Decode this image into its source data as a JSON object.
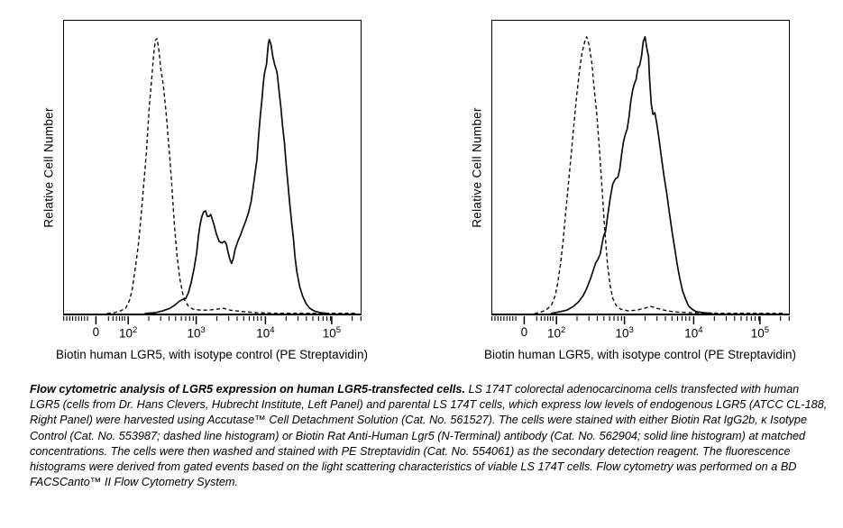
{
  "figure": {
    "background": "#ffffff",
    "ink": "#000000"
  },
  "caption": {
    "lead": "Flow cytometric analysis of LGR5 expression on human LGR5-transfected cells.",
    "body": " LS 174T colorectal adenocarcinoma cells transfected with human LGR5 (cells from Dr. Hans Clevers, Hubrecht Institute, Left Panel) and parental LS 174T cells, which express low levels of endogenous LGR5 (ATCC CL-188, Right Panel) were harvested using Accutase™ Cell Detachment Solution (Cat. No. 561527). The cells were stained with either Biotin Rat IgG2b, κ Isotype Control (Cat. No. 553987; dashed line histogram) or Biotin Rat Anti-Human Lgr5 (N-Terminal) antibody (Cat. No. 562904; solid line histogram) at matched concentrations. The cells were then washed and stained with PE Streptavidin (Cat. No. 554061) as the secondary detection reagent. The fluorescence histograms were derived from gated events based on the light scattering characteristics of viable LS 174T cells. Flow cytometry was performed on a BD FACSCanto™ II Flow Cytometry System."
  },
  "chart_data": {
    "type": "line",
    "subtype": "flow-cytometry-histogram-overlay",
    "x_scale": "logicle",
    "grid": false,
    "legend": "none",
    "x_axis": {
      "label": "Biotin human LGR5, with isotype control (PE Streptavidin)",
      "ticks": [
        {
          "base": "0",
          "exp": "",
          "pos": 0.11
        },
        {
          "base": "10",
          "exp": "2",
          "pos": 0.218
        },
        {
          "base": "10",
          "exp": "3",
          "pos": 0.446
        },
        {
          "base": "10",
          "exp": "4",
          "pos": 0.678
        },
        {
          "base": "10",
          "exp": "5",
          "pos": 0.9
        }
      ],
      "minor_ticks": [
        0.002,
        0.012,
        0.022,
        0.032,
        0.042,
        0.052,
        0.062,
        0.072,
        0.082,
        0.152,
        0.167,
        0.179,
        0.189,
        0.198,
        0.206,
        0.287,
        0.327,
        0.355,
        0.377,
        0.396,
        0.411,
        0.424,
        0.436,
        0.515,
        0.555,
        0.583,
        0.605,
        0.624,
        0.639,
        0.652,
        0.664,
        0.747,
        0.787,
        0.815,
        0.837,
        0.856,
        0.871,
        0.884,
        0.896,
        0.969,
        0.998
      ]
    },
    "y_axis": {
      "label": "Relative Cell Number",
      "ticks": "none"
    },
    "panels": [
      {
        "name": "Left Panel",
        "series": [
          {
            "name": "Isotype Control (dashed line histogram)",
            "style": "dashed",
            "mode_x": "2.5e2",
            "points": [
              [
                0.145,
                0
              ],
              [
                0.169,
                0.003
              ],
              [
                0.19,
                0.009
              ],
              [
                0.208,
                0.018
              ],
              [
                0.221,
                0.046
              ],
              [
                0.23,
                0.082
              ],
              [
                0.242,
                0.168
              ],
              [
                0.251,
                0.238
              ],
              [
                0.26,
                0.335
              ],
              [
                0.269,
                0.442
              ],
              [
                0.278,
                0.555
              ],
              [
                0.287,
                0.701
              ],
              [
                0.296,
                0.808
              ],
              [
                0.302,
                0.884
              ],
              [
                0.308,
                0.933
              ],
              [
                0.314,
                0.939
              ],
              [
                0.32,
                0.899
              ],
              [
                0.326,
                0.838
              ],
              [
                0.335,
                0.777
              ],
              [
                0.344,
                0.686
              ],
              [
                0.35,
                0.616
              ],
              [
                0.357,
                0.527
              ],
              [
                0.363,
                0.442
              ],
              [
                0.372,
                0.305
              ],
              [
                0.381,
                0.198
              ],
              [
                0.39,
                0.122
              ],
              [
                0.399,
                0.073
              ],
              [
                0.408,
                0.043
              ],
              [
                0.42,
                0.024
              ],
              [
                0.435,
                0.015
              ],
              [
                0.459,
                0.012
              ],
              [
                0.489,
                0.012
              ],
              [
                0.514,
                0.015
              ],
              [
                0.538,
                0.018
              ],
              [
                0.559,
                0.012
              ],
              [
                0.58,
                0.009
              ],
              [
                0.61,
                0.006
              ],
              [
                0.65,
                0.003
              ],
              [
                0.725,
                0.001
              ],
              [
                0.982,
                0.001
              ]
            ]
          },
          {
            "name": "Anti-Human Lgr5 (solid line histogram)",
            "style": "solid",
            "mode_x": "1.0e4",
            "minor_mode_x": "1.3e3",
            "points": [
              [
                0.272,
                0
              ],
              [
                0.308,
                0.003
              ],
              [
                0.332,
                0.009
              ],
              [
                0.357,
                0.018
              ],
              [
                0.375,
                0.03
              ],
              [
                0.39,
                0.043
              ],
              [
                0.402,
                0.049
              ],
              [
                0.411,
                0.052
              ],
              [
                0.42,
                0.073
              ],
              [
                0.429,
                0.107
              ],
              [
                0.438,
                0.152
              ],
              [
                0.447,
                0.207
              ],
              [
                0.453,
                0.262
              ],
              [
                0.459,
                0.305
              ],
              [
                0.465,
                0.332
              ],
              [
                0.471,
                0.348
              ],
              [
                0.477,
                0.351
              ],
              [
                0.483,
                0.332
              ],
              [
                0.489,
                0.332
              ],
              [
                0.495,
                0.338
              ],
              [
                0.505,
                0.305
              ],
              [
                0.514,
                0.271
              ],
              [
                0.523,
                0.247
              ],
              [
                0.532,
                0.241
              ],
              [
                0.541,
                0.247
              ],
              [
                0.547,
                0.238
              ],
              [
                0.553,
                0.21
              ],
              [
                0.559,
                0.186
              ],
              [
                0.565,
                0.171
              ],
              [
                0.571,
                0.189
              ],
              [
                0.577,
                0.22
              ],
              [
                0.586,
                0.247
              ],
              [
                0.595,
                0.268
              ],
              [
                0.604,
                0.293
              ],
              [
                0.613,
                0.317
              ],
              [
                0.622,
                0.345
              ],
              [
                0.631,
                0.384
              ],
              [
                0.64,
                0.448
              ],
              [
                0.65,
                0.524
              ],
              [
                0.656,
                0.604
              ],
              [
                0.662,
                0.677
              ],
              [
                0.668,
                0.738
              ],
              [
                0.671,
                0.777
              ],
              [
                0.674,
                0.808
              ],
              [
                0.677,
                0.826
              ],
              [
                0.683,
                0.854
              ],
              [
                0.686,
                0.893
              ],
              [
                0.689,
                0.924
              ],
              [
                0.692,
                0.936
              ],
              [
                0.698,
                0.918
              ],
              [
                0.704,
                0.878
              ],
              [
                0.71,
                0.851
              ],
              [
                0.716,
                0.832
              ],
              [
                0.719,
                0.817
              ],
              [
                0.725,
                0.759
              ],
              [
                0.731,
                0.704
              ],
              [
                0.737,
                0.64
              ],
              [
                0.743,
                0.585
              ],
              [
                0.749,
                0.509
              ],
              [
                0.755,
                0.442
              ],
              [
                0.761,
                0.375
              ],
              [
                0.767,
                0.314
              ],
              [
                0.773,
                0.259
              ],
              [
                0.779,
                0.192
              ],
              [
                0.785,
                0.143
              ],
              [
                0.795,
                0.091
              ],
              [
                0.804,
                0.061
              ],
              [
                0.816,
                0.034
              ],
              [
                0.828,
                0.018
              ],
              [
                0.843,
                0.009
              ],
              [
                0.864,
                0.003
              ],
              [
                0.891,
                0
              ]
            ]
          }
        ]
      },
      {
        "name": "Right Panel",
        "series": [
          {
            "name": "Isotype Control (dashed line histogram)",
            "style": "dashed",
            "mode_x": "2.5e2",
            "points": [
              [
                0.142,
                0
              ],
              [
                0.167,
                0.006
              ],
              [
                0.185,
                0.015
              ],
              [
                0.2,
                0.03
              ],
              [
                0.212,
                0.061
              ],
              [
                0.221,
                0.107
              ],
              [
                0.23,
                0.168
              ],
              [
                0.239,
                0.25
              ],
              [
                0.248,
                0.351
              ],
              [
                0.258,
                0.457
              ],
              [
                0.267,
                0.555
              ],
              [
                0.276,
                0.656
              ],
              [
                0.285,
                0.747
              ],
              [
                0.294,
                0.829
              ],
              [
                0.303,
                0.893
              ],
              [
                0.312,
                0.93
              ],
              [
                0.318,
                0.945
              ],
              [
                0.327,
                0.915
              ],
              [
                0.336,
                0.854
              ],
              [
                0.342,
                0.784
              ],
              [
                0.352,
                0.686
              ],
              [
                0.361,
                0.564
              ],
              [
                0.37,
                0.427
              ],
              [
                0.379,
                0.29
              ],
              [
                0.388,
                0.174
              ],
              [
                0.397,
                0.098
              ],
              [
                0.406,
                0.052
              ],
              [
                0.418,
                0.027
              ],
              [
                0.433,
                0.015
              ],
              [
                0.458,
                0.009
              ],
              [
                0.488,
                0.012
              ],
              [
                0.512,
                0.018
              ],
              [
                0.536,
                0.024
              ],
              [
                0.555,
                0.018
              ],
              [
                0.579,
                0.012
              ],
              [
                0.609,
                0.006
              ],
              [
                0.667,
                0.003
              ],
              [
                0.773,
                0.001
              ],
              [
                0.979,
                0.001
              ]
            ]
          },
          {
            "name": "Anti-Human Lgr5 (solid line histogram)",
            "style": "solid",
            "mode_x": "1.9e3",
            "points": [
              [
                0.197,
                0
              ],
              [
                0.227,
                0.006
              ],
              [
                0.252,
                0.012
              ],
              [
                0.273,
                0.024
              ],
              [
                0.291,
                0.04
              ],
              [
                0.306,
                0.061
              ],
              [
                0.318,
                0.085
              ],
              [
                0.33,
                0.116
              ],
              [
                0.339,
                0.143
              ],
              [
                0.348,
                0.171
              ],
              [
                0.358,
                0.189
              ],
              [
                0.364,
                0.204
              ],
              [
                0.37,
                0.238
              ],
              [
                0.376,
                0.268
              ],
              [
                0.382,
                0.28
              ],
              [
                0.388,
                0.326
              ],
              [
                0.397,
                0.39
              ],
              [
                0.406,
                0.442
              ],
              [
                0.415,
                0.46
              ],
              [
                0.424,
                0.466
              ],
              [
                0.43,
                0.494
              ],
              [
                0.436,
                0.543
              ],
              [
                0.442,
                0.585
              ],
              [
                0.448,
                0.61
              ],
              [
                0.455,
                0.631
              ],
              [
                0.461,
                0.671
              ],
              [
                0.467,
                0.726
              ],
              [
                0.473,
                0.762
              ],
              [
                0.479,
                0.784
              ],
              [
                0.485,
                0.799
              ],
              [
                0.491,
                0.838
              ],
              [
                0.497,
                0.848
              ],
              [
                0.503,
                0.878
              ],
              [
                0.509,
                0.93
              ],
              [
                0.515,
                0.945
              ],
              [
                0.521,
                0.905
              ],
              [
                0.527,
                0.878
              ],
              [
                0.53,
                0.808
              ],
              [
                0.536,
                0.716
              ],
              [
                0.542,
                0.68
              ],
              [
                0.548,
                0.686
              ],
              [
                0.555,
                0.646
              ],
              [
                0.561,
                0.604
              ],
              [
                0.57,
                0.534
              ],
              [
                0.579,
                0.47
              ],
              [
                0.588,
                0.412
              ],
              [
                0.597,
                0.345
              ],
              [
                0.606,
                0.28
              ],
              [
                0.615,
                0.223
              ],
              [
                0.624,
                0.165
              ],
              [
                0.633,
                0.116
              ],
              [
                0.642,
                0.076
              ],
              [
                0.652,
                0.049
              ],
              [
                0.661,
                0.027
              ],
              [
                0.673,
                0.015
              ],
              [
                0.688,
                0.006
              ],
              [
                0.712,
                0.003
              ],
              [
                0.742,
                0
              ]
            ]
          }
        ]
      }
    ]
  }
}
